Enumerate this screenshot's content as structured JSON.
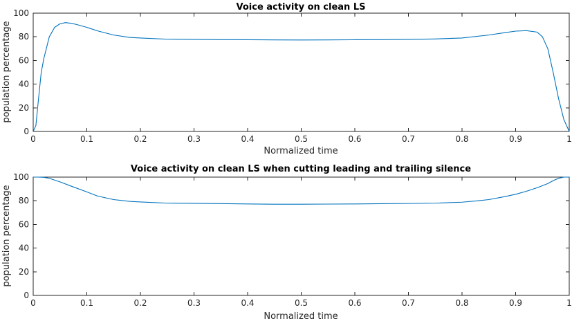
{
  "colors": {
    "series": "#0072BD",
    "axis": "#262626"
  },
  "chart_data": [
    {
      "type": "line",
      "title": "Voice activity on clean LS",
      "xlabel": "Normalized time",
      "ylabel": "population percentage",
      "xlim": [
        0,
        1
      ],
      "ylim": [
        0,
        100
      ],
      "xticks": [
        "0",
        "0.1",
        "0.2",
        "0.3",
        "0.4",
        "0.5",
        "0.6",
        "0.7",
        "0.8",
        "0.9",
        "1"
      ],
      "yticks": [
        "0",
        "20",
        "40",
        "60",
        "80",
        "100"
      ],
      "grid": false,
      "series": [
        {
          "x": [
            0,
            0.005,
            0.01,
            0.015,
            0.02,
            0.03,
            0.04,
            0.05,
            0.06,
            0.07,
            0.08,
            0.1,
            0.12,
            0.15,
            0.18,
            0.2,
            0.25,
            0.3,
            0.35,
            0.4,
            0.45,
            0.5,
            0.55,
            0.6,
            0.65,
            0.7,
            0.75,
            0.8,
            0.85,
            0.88,
            0.9,
            0.92,
            0.94,
            0.95,
            0.96,
            0.97,
            0.98,
            0.99,
            1.0
          ],
          "y": [
            0,
            5,
            28,
            50,
            62,
            80,
            88,
            91,
            92,
            91.5,
            90.5,
            88,
            85,
            81.5,
            79.5,
            79,
            78,
            77.8,
            77.6,
            77.5,
            77.4,
            77.3,
            77.4,
            77.5,
            77.6,
            77.8,
            78.2,
            79,
            81.5,
            83.5,
            84.8,
            85.2,
            84,
            80,
            70,
            50,
            28,
            10,
            0
          ]
        }
      ]
    },
    {
      "type": "line",
      "title": "Voice activity on clean LS when cutting leading and trailing silence",
      "xlabel": "Normalized time",
      "ylabel": "population percentage",
      "xlim": [
        0,
        1
      ],
      "ylim": [
        0,
        100
      ],
      "xticks": [
        "0",
        "0.1",
        "0.2",
        "0.3",
        "0.4",
        "0.5",
        "0.6",
        "0.7",
        "0.8",
        "0.9",
        "1"
      ],
      "yticks": [
        "0",
        "20",
        "40",
        "60",
        "80",
        "100"
      ],
      "grid": false,
      "series": [
        {
          "x": [
            0,
            0.01,
            0.02,
            0.03,
            0.05,
            0.07,
            0.1,
            0.12,
            0.15,
            0.18,
            0.2,
            0.25,
            0.3,
            0.35,
            0.4,
            0.45,
            0.5,
            0.55,
            0.6,
            0.65,
            0.7,
            0.75,
            0.8,
            0.83,
            0.85,
            0.88,
            0.9,
            0.92,
            0.94,
            0.96,
            0.97,
            0.98,
            0.99,
            1.0
          ],
          "y": [
            100,
            100,
            99.8,
            99,
            96,
            92.5,
            87.5,
            84,
            81,
            79.5,
            79,
            78,
            77.8,
            77.6,
            77.3,
            77.1,
            77.1,
            77.2,
            77.3,
            77.5,
            77.7,
            78,
            78.8,
            80,
            81,
            83.5,
            85.5,
            88,
            91,
            94.5,
            97,
            99,
            100,
            100
          ]
        }
      ]
    }
  ]
}
